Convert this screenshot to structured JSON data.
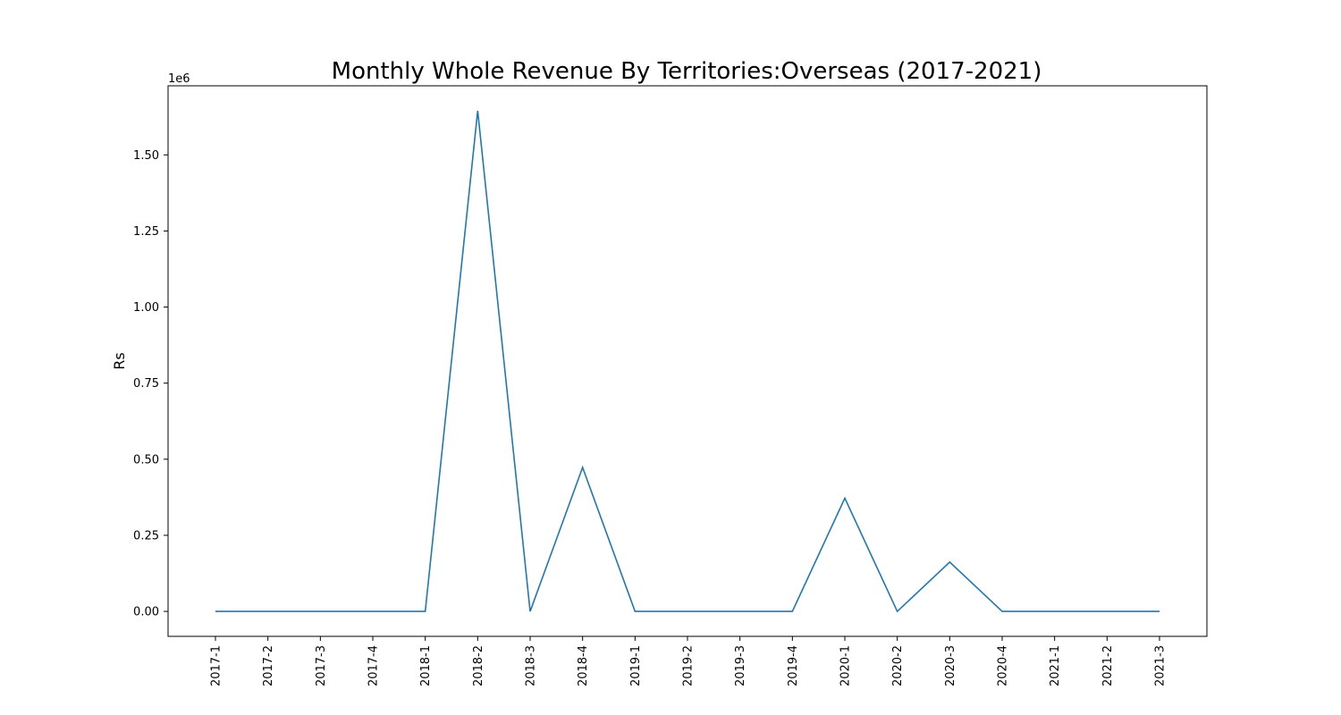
{
  "chart_data": {
    "type": "line",
    "title": "Monthly Whole Revenue By Territories:Overseas (2017-2021)",
    "xlabel": "",
    "ylabel": "Rs",
    "y_offset_label": "1e6",
    "y_scale": 1000000,
    "categories": [
      "2017-1",
      "2017-2",
      "2017-3",
      "2017-4",
      "2018-1",
      "2018-2",
      "2018-3",
      "2018-4",
      "2019-1",
      "2019-2",
      "2019-3",
      "2019-4",
      "2020-1",
      "2020-2",
      "2020-3",
      "2020-4",
      "2021-1",
      "2021-2",
      "2021-3"
    ],
    "series": [
      {
        "values": [
          0,
          0,
          0,
          0,
          0,
          1645000,
          0,
          473000,
          0,
          0,
          0,
          0,
          372000,
          0,
          162000,
          0,
          0,
          0,
          0
        ],
        "color": "#1f77b4"
      }
    ],
    "ylim": [
      -82000,
      1727000
    ],
    "yticks": [
      0,
      250000,
      500000,
      750000,
      1000000,
      1250000,
      1500000
    ],
    "ytick_labels": [
      "0.00",
      "0.25",
      "0.50",
      "0.75",
      "1.00",
      "1.25",
      "1.50"
    ],
    "grid": false,
    "legend": "none"
  }
}
